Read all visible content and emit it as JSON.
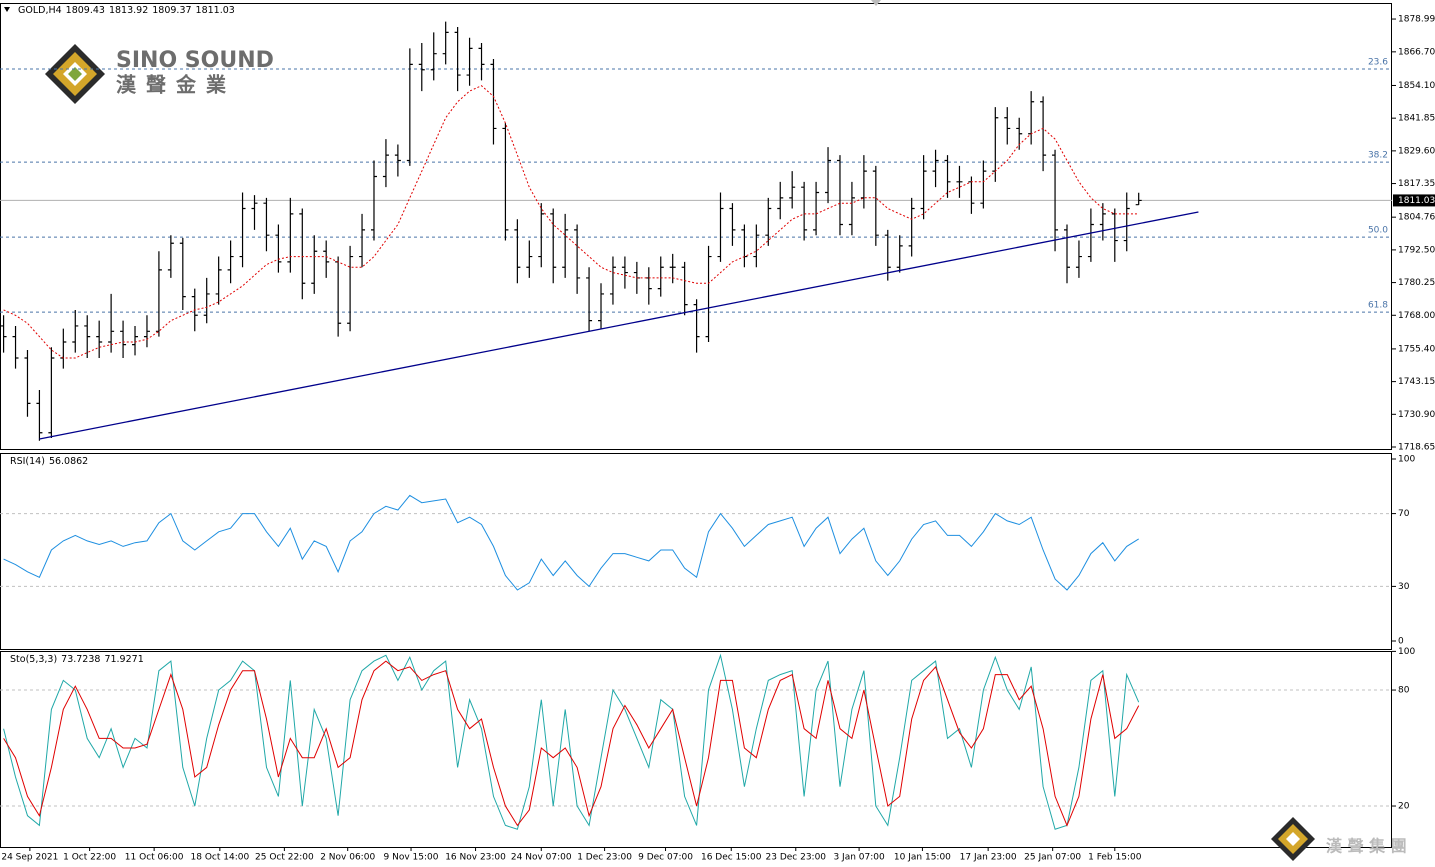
{
  "branding": {
    "name": "SINO SOUND",
    "chinese": "漢聲金業",
    "watermark": "漢 聲 集 團"
  },
  "chart_data": [
    {
      "type": "candlestick",
      "title": "GOLD,H4",
      "color": "#000000",
      "xlim": [
        -0.3,
        116.2
      ],
      "xticks": [
        {
          "value": 2.2,
          "label": "24 Sep 2021"
        },
        {
          "value": 7.2,
          "label": "1 Oct 22:00"
        },
        {
          "value": 12.6,
          "label": "11 Oct 06:00"
        },
        {
          "value": 18.1,
          "label": "18 Oct 14:00"
        },
        {
          "value": 23.5,
          "label": "25 Oct 22:00"
        },
        {
          "value": 28.8,
          "label": "2 Nov 06:00"
        },
        {
          "value": 34.1,
          "label": "9 Nov 15:00"
        },
        {
          "value": 39.5,
          "label": "16 Nov 23:00"
        },
        {
          "value": 45.0,
          "label": "24 Nov 07:00"
        },
        {
          "value": 50.3,
          "label": "1 Dec 23:00"
        },
        {
          "value": 55.4,
          "label": "9 Dec 07:00"
        },
        {
          "value": 60.9,
          "label": "16 Dec 15:00"
        },
        {
          "value": 66.3,
          "label": "23 Dec 23:00"
        },
        {
          "value": 71.6,
          "label": "3 Jan 07:00"
        },
        {
          "value": 76.9,
          "label": "10 Jan 15:00"
        },
        {
          "value": 82.4,
          "label": "17 Jan 23:00"
        },
        {
          "value": 87.8,
          "label": "25 Jan 07:00"
        },
        {
          "value": 93.0,
          "label": "1 Feb 15:00"
        }
      ],
      "ylim": [
        1717.9,
        1885.0
      ],
      "yticks": [
        1878.99,
        {
          "value": 1866.7,
          "label": "1866.70"
        },
        {
          "value": 1854.1,
          "label": "1854.10"
        },
        1841.85,
        {
          "value": 1829.6,
          "label": "1829.60"
        },
        1817.35,
        1804.76,
        {
          "value": 1792.5,
          "label": "1792.50"
        },
        1780.25,
        {
          "value": 1768.0,
          "label": "1768.00"
        },
        {
          "value": 1755.4,
          "label": "1755.40"
        },
        1743.15,
        {
          "value": 1730.9,
          "label": "1730.90"
        },
        1718.65
      ],
      "fib_levels": [
        {
          "value": 1860.26,
          "label": "23.6"
        },
        {
          "value": 1825.4,
          "label": "38.2"
        },
        {
          "value": 1797.3,
          "label": "50.0"
        },
        {
          "value": 1769.2,
          "label": "61.8"
        }
      ],
      "fib_color": "#4a74a8",
      "trendline": {
        "x": [
          3,
          100
        ],
        "y": [
          1721.65,
          1806.7
        ],
        "color": "#00008b"
      },
      "ma": {
        "color": "#e00000",
        "values": [
          1770,
          1768,
          1765,
          1760,
          1755,
          1752,
          1752,
          1754,
          1756,
          1757,
          1758,
          1758,
          1759,
          1762,
          1766,
          1768,
          1770,
          1771,
          1773,
          1776,
          1779,
          1783,
          1787,
          1789,
          1790,
          1790,
          1790,
          1790,
          1788,
          1786,
          1786,
          1790,
          1796,
          1802,
          1812,
          1822,
          1832,
          1842,
          1848,
          1852,
          1854,
          1850,
          1840,
          1828,
          1816,
          1808,
          1802,
          1798,
          1794,
          1790,
          1786,
          1784,
          1783,
          1782,
          1782,
          1782,
          1782,
          1781,
          1780,
          1780,
          1784,
          1788,
          1790,
          1792,
          1796,
          1800,
          1804,
          1806,
          1806,
          1808,
          1810,
          1810,
          1812,
          1812,
          1808,
          1806,
          1804,
          1806,
          1810,
          1814,
          1816,
          1818,
          1818,
          1822,
          1826,
          1832,
          1836,
          1838,
          1834,
          1826,
          1818,
          1812,
          1808,
          1806,
          1806,
          1806
        ]
      },
      "open": [
        1764,
        1760,
        1752,
        1735,
        1724,
        1752,
        1758,
        1764,
        1760,
        1758,
        1762,
        1757,
        1760,
        1762,
        1785,
        1795,
        1775,
        1768,
        1776,
        1785,
        1790,
        1808,
        1810,
        1798,
        1788,
        1806,
        1780,
        1792,
        1788,
        1765,
        1790,
        1800,
        1820,
        1828,
        1826,
        1862,
        1860,
        1866,
        1874,
        1858,
        1868,
        1862,
        1838,
        1800,
        1786,
        1790,
        1806,
        1786,
        1800,
        1782,
        1766,
        1776,
        1786,
        1784,
        1782,
        1778,
        1786,
        1786,
        1772,
        1760,
        1790,
        1808,
        1800,
        1790,
        1798,
        1808,
        1812,
        1816,
        1800,
        1814,
        1826,
        1802,
        1812,
        1822,
        1798,
        1786,
        1794,
        1808,
        1822,
        1826,
        1818,
        1818,
        1810,
        1822,
        1842,
        1838,
        1836,
        1848,
        1828,
        1800,
        1786,
        1790,
        1802,
        1806,
        1796,
        1809.43
      ],
      "high": [
        1768,
        1764,
        1755,
        1740,
        1756,
        1763,
        1770,
        1768,
        1766,
        1776,
        1766,
        1764,
        1768,
        1792,
        1798,
        1797,
        1778,
        1782,
        1790,
        1796,
        1814,
        1813,
        1812,
        1802,
        1812,
        1808,
        1798,
        1796,
        1790,
        1794,
        1806,
        1826,
        1834,
        1832,
        1868,
        1870,
        1874,
        1878,
        1876,
        1872,
        1870,
        1864,
        1840,
        1804,
        1796,
        1810,
        1808,
        1806,
        1802,
        1786,
        1780,
        1790,
        1790,
        1788,
        1786,
        1790,
        1791,
        1788,
        1774,
        1794,
        1814,
        1810,
        1802,
        1802,
        1812,
        1818,
        1822,
        1818,
        1818,
        1831,
        1828,
        1818,
        1828,
        1824,
        1800,
        1798,
        1812,
        1828,
        1830,
        1828,
        1824,
        1820,
        1826,
        1846,
        1846,
        1842,
        1852,
        1850,
        1830,
        1802,
        1796,
        1808,
        1810,
        1808,
        1814,
        1813.92
      ],
      "low": [
        1754,
        1748,
        1730,
        1721,
        1722,
        1748,
        1754,
        1752,
        1752,
        1754,
        1752,
        1753,
        1756,
        1760,
        1782,
        1770,
        1762,
        1765,
        1772,
        1780,
        1786,
        1800,
        1792,
        1784,
        1784,
        1774,
        1776,
        1782,
        1760,
        1762,
        1786,
        1796,
        1816,
        1820,
        1824,
        1852,
        1856,
        1862,
        1852,
        1854,
        1856,
        1832,
        1796,
        1780,
        1782,
        1786,
        1780,
        1782,
        1776,
        1762,
        1763,
        1772,
        1778,
        1776,
        1772,
        1775,
        1780,
        1768,
        1754,
        1758,
        1788,
        1794,
        1786,
        1786,
        1794,
        1804,
        1808,
        1796,
        1798,
        1810,
        1798,
        1798,
        1808,
        1794,
        1781,
        1784,
        1790,
        1804,
        1816,
        1812,
        1812,
        1806,
        1808,
        1818,
        1832,
        1830,
        1832,
        1822,
        1792,
        1780,
        1782,
        1788,
        1796,
        1788,
        1792,
        1809.37
      ],
      "close": [
        1760,
        1752,
        1735,
        1724,
        1752,
        1758,
        1764,
        1760,
        1758,
        1762,
        1757,
        1760,
        1762,
        1785,
        1795,
        1775,
        1768,
        1776,
        1785,
        1790,
        1808,
        1810,
        1798,
        1788,
        1806,
        1780,
        1792,
        1788,
        1765,
        1790,
        1800,
        1820,
        1828,
        1826,
        1862,
        1860,
        1866,
        1874,
        1858,
        1868,
        1862,
        1838,
        1800,
        1786,
        1790,
        1806,
        1786,
        1800,
        1782,
        1766,
        1776,
        1786,
        1784,
        1782,
        1778,
        1786,
        1786,
        1772,
        1760,
        1790,
        1808,
        1800,
        1790,
        1798,
        1808,
        1812,
        1816,
        1800,
        1814,
        1826,
        1802,
        1812,
        1822,
        1798,
        1786,
        1794,
        1808,
        1822,
        1826,
        1818,
        1818,
        1810,
        1822,
        1842,
        1838,
        1836,
        1848,
        1828,
        1800,
        1786,
        1790,
        1802,
        1806,
        1796,
        1808,
        1811.03
      ]
    },
    {
      "type": "line",
      "title": "RSI(14)",
      "color": "#1e8fe0",
      "ylim": [
        -4.4,
        103.3
      ],
      "yticks": [
        100,
        70,
        30,
        0
      ],
      "levels": [
        70,
        30
      ],
      "values": [
        45,
        42,
        38,
        35,
        50,
        55,
        58,
        55,
        53,
        55,
        52,
        54,
        55,
        65,
        70,
        55,
        50,
        55,
        60,
        62,
        70,
        70,
        60,
        52,
        62,
        45,
        55,
        52,
        38,
        55,
        60,
        70,
        74,
        72,
        80,
        76,
        77,
        78,
        65,
        68,
        64,
        52,
        36,
        28,
        32,
        45,
        36,
        44,
        36,
        30,
        40,
        48,
        48,
        46,
        44,
        50,
        50,
        40,
        35,
        60,
        70,
        62,
        52,
        58,
        64,
        66,
        68,
        52,
        62,
        68,
        48,
        56,
        62,
        44,
        36,
        44,
        56,
        64,
        66,
        58,
        58,
        52,
        60,
        70,
        66,
        64,
        68,
        50,
        34,
        28,
        36,
        48,
        54,
        44,
        52,
        56.0862
      ]
    },
    {
      "type": "line",
      "title": "Sto(5,3,3)",
      "ylim": [
        -1.2,
        100.2
      ],
      "yticks": [
        100,
        80,
        20
      ],
      "levels": [
        80,
        20
      ],
      "series": [
        {
          "color": "#20a8a8",
          "values": [
            60,
            35,
            15,
            10,
            70,
            85,
            80,
            55,
            45,
            60,
            40,
            55,
            50,
            90,
            95,
            40,
            20,
            55,
            80,
            85,
            95,
            90,
            40,
            25,
            85,
            20,
            70,
            55,
            15,
            75,
            90,
            95,
            98,
            85,
            97,
            80,
            90,
            95,
            40,
            75,
            60,
            25,
            10,
            8,
            30,
            75,
            20,
            70,
            20,
            10,
            45,
            80,
            70,
            55,
            40,
            75,
            70,
            25,
            10,
            80,
            98,
            70,
            30,
            60,
            85,
            88,
            90,
            25,
            80,
            95,
            30,
            70,
            90,
            20,
            10,
            45,
            85,
            90,
            95,
            55,
            60,
            40,
            80,
            97,
            80,
            70,
            92,
            30,
            8,
            10,
            40,
            85,
            90,
            25,
            88,
            73.7238
          ]
        },
        {
          "color": "#e00000",
          "values": [
            55,
            45,
            25,
            15,
            40,
            70,
            82,
            70,
            55,
            55,
            50,
            50,
            52,
            70,
            88,
            70,
            35,
            40,
            62,
            80,
            90,
            90,
            65,
            35,
            55,
            45,
            45,
            60,
            40,
            45,
            75,
            90,
            95,
            90,
            92,
            85,
            88,
            90,
            70,
            60,
            65,
            40,
            20,
            10,
            18,
            50,
            45,
            50,
            40,
            15,
            30,
            60,
            72,
            62,
            50,
            60,
            70,
            45,
            20,
            45,
            85,
            85,
            50,
            45,
            70,
            85,
            88,
            60,
            55,
            85,
            60,
            55,
            80,
            50,
            20,
            25,
            65,
            85,
            92,
            75,
            58,
            50,
            60,
            88,
            88,
            75,
            82,
            60,
            25,
            10,
            25,
            65,
            88,
            55,
            60,
            71.9271
          ]
        }
      ]
    }
  ]
}
